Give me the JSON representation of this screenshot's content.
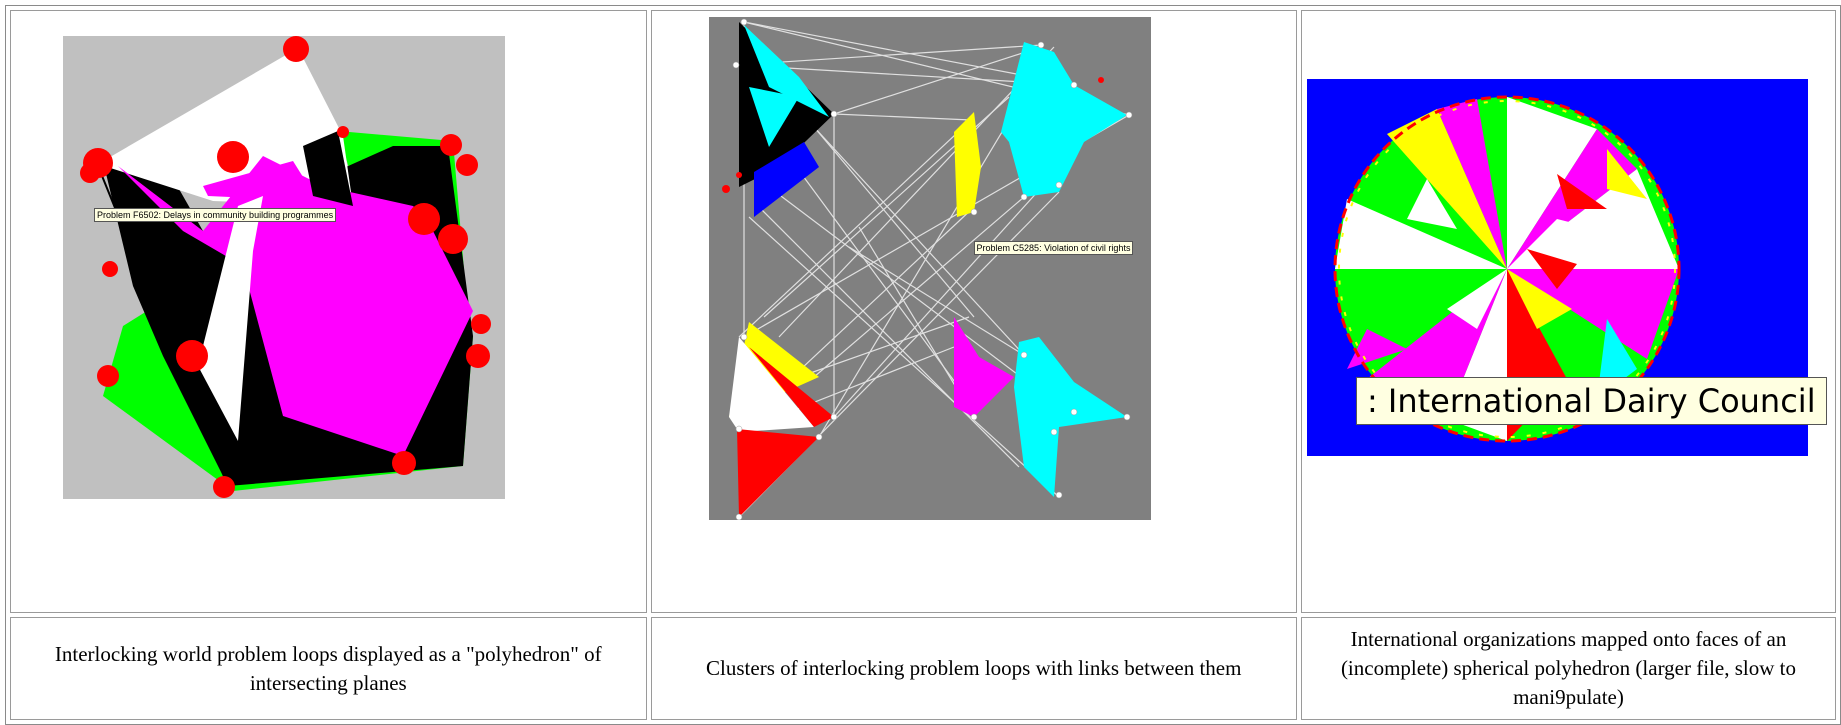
{
  "panels": [
    {
      "caption": "Interlocking world problem loops displayed as a \"polyhedron\" of intersecting planes",
      "tooltip": "Problem F6502: Delays in community building programmes"
    },
    {
      "caption": "Clusters of interlocking problem loops with links between them",
      "tooltip": "Problem C5285: Violation of civil rights"
    },
    {
      "caption": "International organizations mapped onto faces of an (incomplete) spherical polyhedron (larger file, slow to mani9pulate)",
      "tooltip": ": International Dairy Council"
    }
  ],
  "colors": {
    "panel1_bg": "#c0c0c0",
    "panel2_bg": "#808080",
    "panel3_bg": "#0000ff",
    "node_red": "#ff0000",
    "magenta": "#ff00ff",
    "green": "#00ff00",
    "cyan": "#00ffff",
    "yellow": "#ffff00",
    "tooltip_bg": "#ffffe1"
  }
}
